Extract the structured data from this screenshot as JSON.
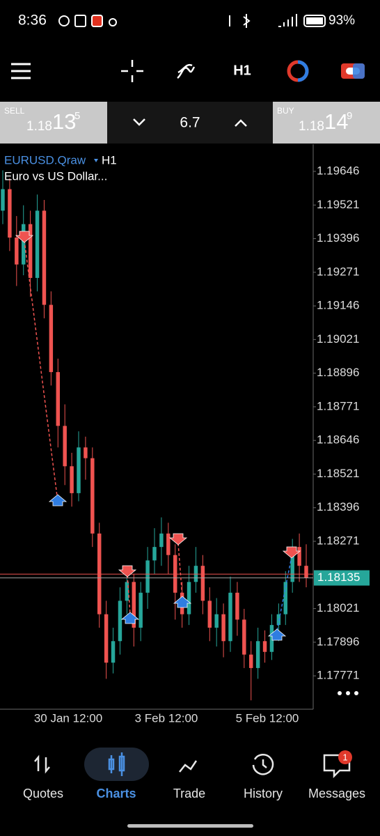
{
  "status_bar": {
    "time": "8:36",
    "battery": "93%"
  },
  "toolbar": {
    "timeframe": "H1"
  },
  "trade_bar": {
    "sell": {
      "label": "SELL",
      "price_main": "1.18",
      "price_big": "13",
      "price_small": "5"
    },
    "volume": "6.7",
    "buy": {
      "label": "BUY",
      "price_main": "1.18",
      "price_big": "14",
      "price_small": "9"
    }
  },
  "chart": {
    "symbol": "EURUSD.Qraw",
    "timeframe": "H1",
    "description": "Euro vs US Dollar...",
    "ylim": [
      1.17647,
      1.19747
    ],
    "yticks": [
      1.19646,
      1.19521,
      1.19396,
      1.19271,
      1.19146,
      1.19021,
      1.18896,
      1.18771,
      1.18646,
      1.18521,
      1.18396,
      1.18271,
      1.18021,
      1.17896,
      1.17771
    ],
    "bid_price": 1.18135,
    "ask_price": 1.18149,
    "up_color": "#26a69a",
    "down_color": "#ef5350",
    "x_labels": [
      "30 Jan 12:00",
      "3 Feb 12:00",
      "5 Feb 12:00"
    ],
    "candles": [
      [
        1.195,
        1.1965,
        1.1945,
        1.1958
      ],
      [
        1.1958,
        1.1962,
        1.1935,
        1.194
      ],
      [
        1.194,
        1.1948,
        1.1922,
        1.193
      ],
      [
        1.193,
        1.1952,
        1.1926,
        1.1945
      ],
      [
        1.1945,
        1.195,
        1.1918,
        1.1925
      ],
      [
        1.1925,
        1.1956,
        1.192,
        1.195
      ],
      [
        1.195,
        1.1954,
        1.191,
        1.1915
      ],
      [
        1.1915,
        1.192,
        1.1885,
        1.189
      ],
      [
        1.189,
        1.1895,
        1.1862,
        1.187
      ],
      [
        1.187,
        1.1878,
        1.1848,
        1.1855
      ],
      [
        1.1855,
        1.186,
        1.184,
        1.1845
      ],
      [
        1.1845,
        1.1868,
        1.1842,
        1.1862
      ],
      [
        1.1862,
        1.1866,
        1.185,
        1.1858
      ],
      [
        1.1858,
        1.1862,
        1.1825,
        1.183
      ],
      [
        1.183,
        1.1834,
        1.1795,
        1.18
      ],
      [
        1.18,
        1.1805,
        1.1776,
        1.1782
      ],
      [
        1.1782,
        1.1795,
        1.1778,
        1.179
      ],
      [
        1.179,
        1.181,
        1.1785,
        1.1805
      ],
      [
        1.1805,
        1.1818,
        1.18,
        1.1812
      ],
      [
        1.1812,
        1.1815,
        1.1788,
        1.1795
      ],
      [
        1.1795,
        1.1812,
        1.179,
        1.1808
      ],
      [
        1.1808,
        1.1825,
        1.1802,
        1.182
      ],
      [
        1.182,
        1.1832,
        1.1815,
        1.1825
      ],
      [
        1.1825,
        1.1836,
        1.1818,
        1.183
      ],
      [
        1.183,
        1.1834,
        1.1815,
        1.1822
      ],
      [
        1.1822,
        1.1826,
        1.1798,
        1.1808
      ],
      [
        1.1808,
        1.1812,
        1.1795,
        1.18
      ],
      [
        1.18,
        1.1818,
        1.1796,
        1.1812
      ],
      [
        1.1812,
        1.1825,
        1.1808,
        1.1818
      ],
      [
        1.1818,
        1.1822,
        1.18,
        1.1805
      ],
      [
        1.1805,
        1.181,
        1.179,
        1.1795
      ],
      [
        1.1795,
        1.1806,
        1.1788,
        1.18
      ],
      [
        1.18,
        1.1804,
        1.1784,
        1.179
      ],
      [
        1.179,
        1.1814,
        1.1786,
        1.1808
      ],
      [
        1.1808,
        1.1812,
        1.1792,
        1.1798
      ],
      [
        1.1798,
        1.1802,
        1.178,
        1.1785
      ],
      [
        1.1785,
        1.179,
        1.1768,
        1.178
      ],
      [
        1.178,
        1.1795,
        1.1776,
        1.179
      ],
      [
        1.179,
        1.1794,
        1.1782,
        1.1786
      ],
      [
        1.1786,
        1.18,
        1.1783,
        1.1796
      ],
      [
        1.1796,
        1.1804,
        1.179,
        1.18
      ],
      [
        1.18,
        1.1816,
        1.1796,
        1.1812
      ],
      [
        1.1812,
        1.1828,
        1.1808,
        1.1825
      ],
      [
        1.1825,
        1.183,
        1.1812,
        1.1818
      ],
      [
        1.1818,
        1.1826,
        1.181,
        1.18135
      ]
    ]
  },
  "nav": {
    "items": [
      "Quotes",
      "Charts",
      "Trade",
      "History",
      "Messages"
    ],
    "badge": "1"
  }
}
